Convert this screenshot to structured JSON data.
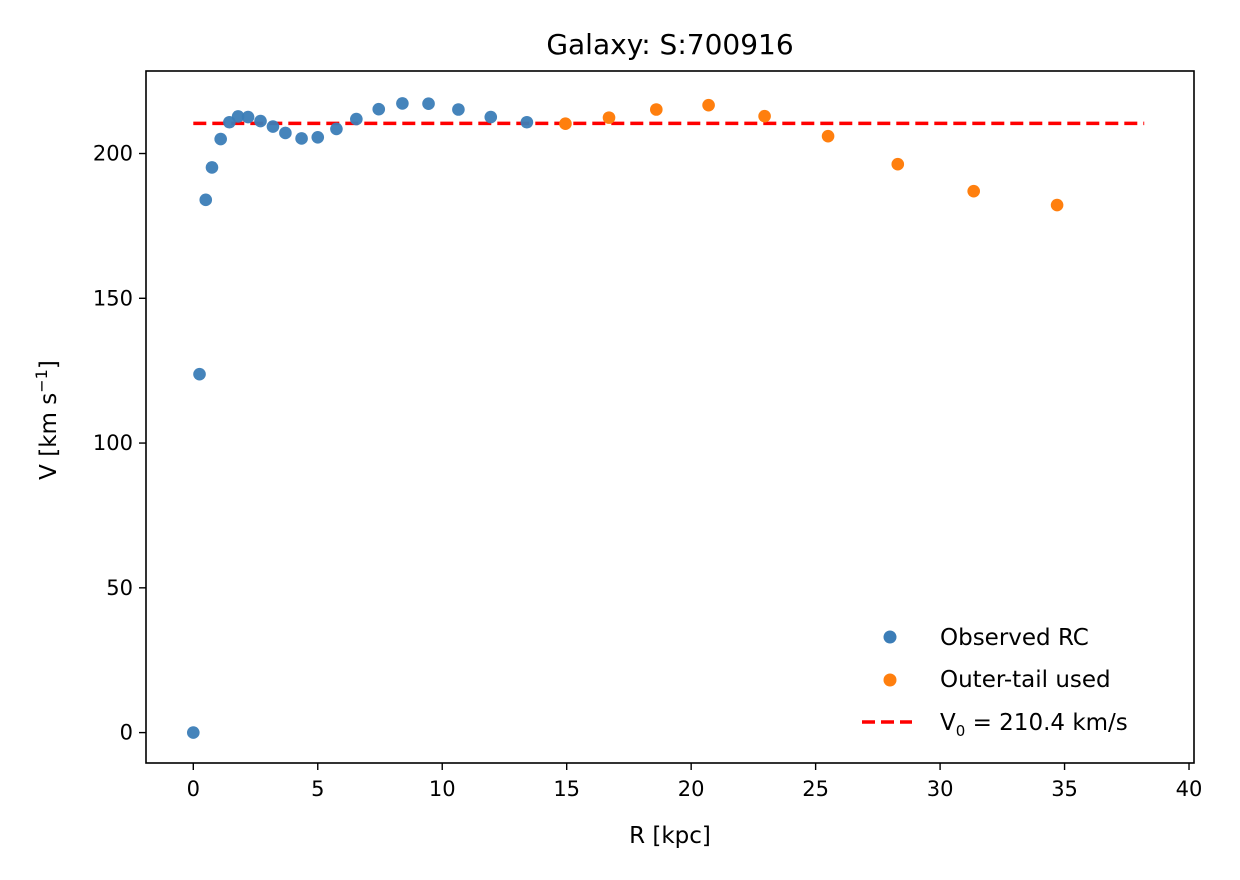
{
  "chart_data": {
    "type": "scatter",
    "title": "Galaxy: S:700916",
    "xlabel": "R  [kpc]",
    "ylabel_main": "V  [km s",
    "ylabel_sup": "−1",
    "ylabel_end": "]",
    "xlim": [
      -1.9,
      40.2
    ],
    "ylim": [
      -10.5,
      228.5
    ],
    "x_ticks": [
      0,
      5,
      10,
      15,
      20,
      25,
      30,
      35,
      40
    ],
    "y_ticks": [
      0,
      50,
      100,
      150,
      200
    ],
    "series": [
      {
        "name": "Observed RC",
        "color": "#3b7db7",
        "x": [
          0.0,
          0.25,
          0.5,
          0.75,
          1.1,
          1.45,
          1.8,
          2.2,
          2.7,
          3.2,
          3.7,
          4.35,
          5.0,
          5.75,
          6.55,
          7.45,
          8.4,
          9.45,
          10.65,
          11.95,
          13.4
        ],
        "y": [
          0.0,
          123.8,
          184.0,
          195.2,
          205.0,
          210.8,
          212.8,
          212.6,
          211.2,
          209.3,
          207.1,
          205.2,
          205.6,
          208.5,
          211.9,
          215.3,
          217.3,
          217.2,
          215.2,
          212.6,
          210.8
        ]
      },
      {
        "name": "Outer-tail used",
        "color": "#ff7f0e",
        "x": [
          14.95,
          16.7,
          18.6,
          20.7,
          22.95,
          25.5,
          28.3,
          31.35,
          34.7
        ],
        "y": [
          210.3,
          212.4,
          215.2,
          216.7,
          212.9,
          206.0,
          196.3,
          187.0,
          182.2
        ]
      }
    ],
    "reference_line": {
      "name_main": "V",
      "name_sub": "0",
      "name_rest": " = 210.4 km/s",
      "y": 210.4,
      "x_range": [
        0.0,
        38.2
      ],
      "color": "#ff0000",
      "style": "dashed"
    },
    "legend_placement": "lower-right",
    "grid": false
  }
}
